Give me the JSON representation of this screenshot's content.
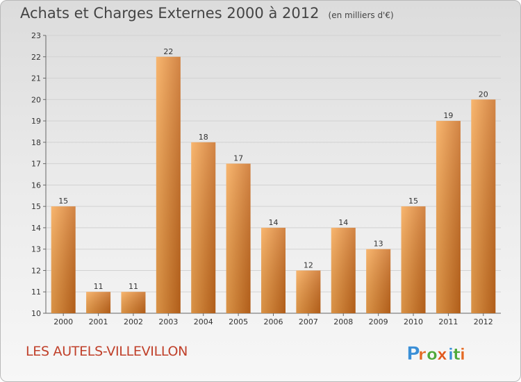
{
  "header": {
    "title": "Achats et Charges Externes 2000 à 2012",
    "subtitle": "(en milliers d'€)"
  },
  "footer": {
    "commune": "LES AUTELS-VILLEVILLON",
    "logo_text": "Proxiti"
  },
  "colors": {
    "bar_light": "#f6a650",
    "bar_dark": "#c86a1d",
    "commune_text": "#c0402a",
    "logo_letters": [
      "#3b8fd6",
      "#e36a24",
      "#4fa83a",
      "#e05a1f",
      "#3b8fd6",
      "#4fa83a",
      "#e36a24"
    ]
  },
  "chart_data": {
    "type": "bar",
    "categories": [
      "2000",
      "2001",
      "2002",
      "2003",
      "2004",
      "2005",
      "2006",
      "2007",
      "2008",
      "2009",
      "2010",
      "2011",
      "2012"
    ],
    "values": [
      15,
      11,
      11,
      22,
      18,
      17,
      14,
      12,
      14,
      13,
      15,
      19,
      20
    ],
    "title": "Achats et Charges Externes 2000 à 2012",
    "subtitle": "(en milliers d'€)",
    "xlabel": "",
    "ylabel": "",
    "ylim": [
      10,
      23
    ],
    "yticks": [
      10,
      11,
      12,
      13,
      14,
      15,
      16,
      17,
      18,
      19,
      20,
      21,
      22,
      23
    ],
    "grid": true,
    "legend": "none"
  }
}
